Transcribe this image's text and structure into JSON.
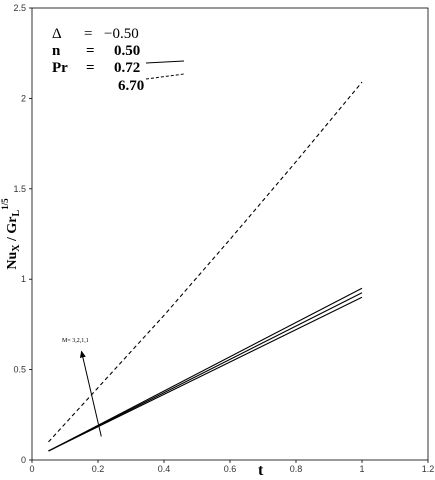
{
  "chart_data": {
    "type": "line",
    "xlabel": "t",
    "ylabel": {
      "main": "Nu",
      "sub1": "X",
      "mid": " / Gr",
      "sub2": "L",
      "sup": "1/5"
    },
    "xlim": [
      0,
      1.2
    ],
    "ylim": [
      0,
      2.5
    ],
    "x_ticks": [
      0,
      0.2,
      0.4,
      0.6,
      0.8,
      1,
      1.2
    ],
    "x_tick_labels": [
      "0",
      "0.2",
      "0.4",
      "0.6",
      "0.8",
      "1",
      "1.2"
    ],
    "y_ticks": [
      0,
      0.5,
      1,
      1.5,
      2,
      2.5
    ],
    "y_tick_labels": [
      "0",
      "0.5",
      "1",
      "1.5",
      "2",
      "2.5"
    ],
    "grid": false,
    "series": [
      {
        "style": "solid",
        "x": [
          0.05,
          1.0
        ],
        "y": [
          0.05,
          0.95
        ]
      },
      {
        "style": "solid",
        "x": [
          0.05,
          1.0
        ],
        "y": [
          0.05,
          0.925
        ]
      },
      {
        "style": "solid",
        "x": [
          0.05,
          1.0
        ],
        "y": [
          0.05,
          0.9
        ]
      },
      {
        "style": "dashed",
        "x": [
          0.05,
          0.2,
          0.4,
          0.6,
          0.8,
          1.0
        ],
        "y": [
          0.1,
          0.4,
          0.8,
          1.22,
          1.65,
          2.09
        ]
      }
    ],
    "legend": {
      "placement": "top-left",
      "delta_symbol": "Δ",
      "delta_eq": "=",
      "delta_value": "−0.50",
      "n_label": "n",
      "n_eq": "=",
      "n_value": "0.50",
      "pr_label": "Pr",
      "pr_eq": "=",
      "pr_value_1": "0.72",
      "pr_value_2": "6.70"
    },
    "annotation": {
      "text": "M= 3,2,1,1",
      "arrow_from": [
        0.21,
        0.13
      ],
      "arrow_to": [
        0.15,
        0.6
      ]
    }
  }
}
